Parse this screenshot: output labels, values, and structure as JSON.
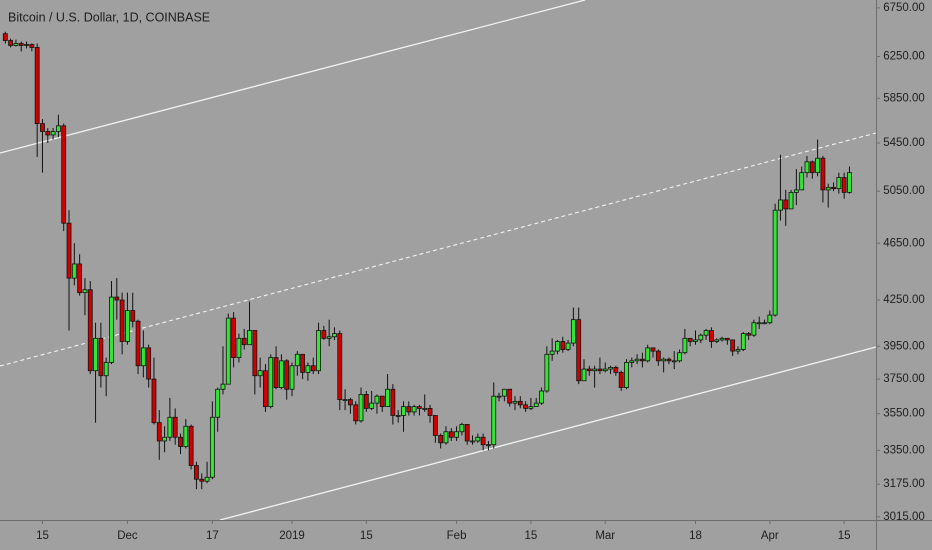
{
  "chart_data": {
    "type": "candlestick",
    "title": "Bitcoin / U.S. Dollar, 1D, COINBASE",
    "log_scale": true,
    "grid": false,
    "up_color": "#33e633",
    "down_color": "#d10000",
    "wick_color": "#111111",
    "ylim": [
      3000,
      6835
    ],
    "yticks": [
      {
        "value": 6750,
        "label": "6750.00"
      },
      {
        "value": 6250,
        "label": "6250.00"
      },
      {
        "value": 5850,
        "label": "5850.00"
      },
      {
        "value": 5450,
        "label": "5450.00"
      },
      {
        "value": 5050,
        "label": "5050.00"
      },
      {
        "value": 4650,
        "label": "4650.00"
      },
      {
        "value": 4250,
        "label": "4250.00"
      },
      {
        "value": 3950,
        "label": "3950.00"
      },
      {
        "value": 3750,
        "label": "3750.00"
      },
      {
        "value": 3550,
        "label": "3550.00"
      },
      {
        "value": 3350,
        "label": "3350.00"
      },
      {
        "value": 3175,
        "label": "3175.00"
      },
      {
        "value": 3015,
        "label": "3015.00"
      }
    ],
    "xlim": [
      "2018-11-07",
      "2019-04-21"
    ],
    "xticks": [
      {
        "value": "2018-11-15",
        "label": "15"
      },
      {
        "value": "2018-12-01",
        "label": "Dec"
      },
      {
        "value": "2018-12-17",
        "label": "17"
      },
      {
        "value": "2019-01-01",
        "label": "2019"
      },
      {
        "value": "2019-01-15",
        "label": "15"
      },
      {
        "value": "2019-02-01",
        "label": "Feb"
      },
      {
        "value": "2019-02-15",
        "label": "15"
      },
      {
        "value": "2019-03-01",
        "label": "Mar"
      },
      {
        "value": "2019-03-18",
        "label": "18"
      },
      {
        "value": "2019-04-01",
        "label": "Apr"
      },
      {
        "value": "2019-04-15",
        "label": "15"
      }
    ],
    "x": [
      "2018-11-08",
      "2018-11-09",
      "2018-11-10",
      "2018-11-11",
      "2018-11-12",
      "2018-11-13",
      "2018-11-14",
      "2018-11-15",
      "2018-11-16",
      "2018-11-17",
      "2018-11-18",
      "2018-11-19",
      "2018-11-20",
      "2018-11-21",
      "2018-11-22",
      "2018-11-23",
      "2018-11-24",
      "2018-11-25",
      "2018-11-26",
      "2018-11-27",
      "2018-11-28",
      "2018-11-29",
      "2018-11-30",
      "2018-12-01",
      "2018-12-02",
      "2018-12-03",
      "2018-12-04",
      "2018-12-05",
      "2018-12-06",
      "2018-12-07",
      "2018-12-08",
      "2018-12-09",
      "2018-12-10",
      "2018-12-11",
      "2018-12-12",
      "2018-12-13",
      "2018-12-14",
      "2018-12-15",
      "2018-12-16",
      "2018-12-17",
      "2018-12-18",
      "2018-12-19",
      "2018-12-20",
      "2018-12-21",
      "2018-12-22",
      "2018-12-23",
      "2018-12-24",
      "2018-12-25",
      "2018-12-26",
      "2018-12-27",
      "2018-12-28",
      "2018-12-29",
      "2018-12-30",
      "2018-12-31",
      "2019-01-01",
      "2019-01-02",
      "2019-01-03",
      "2019-01-04",
      "2019-01-05",
      "2019-01-06",
      "2019-01-07",
      "2019-01-08",
      "2019-01-09",
      "2019-01-10",
      "2019-01-11",
      "2019-01-12",
      "2019-01-13",
      "2019-01-14",
      "2019-01-15",
      "2019-01-16",
      "2019-01-17",
      "2019-01-18",
      "2019-01-19",
      "2019-01-20",
      "2019-01-21",
      "2019-01-22",
      "2019-01-23",
      "2019-01-24",
      "2019-01-25",
      "2019-01-26",
      "2019-01-27",
      "2019-01-28",
      "2019-01-29",
      "2019-01-30",
      "2019-01-31",
      "2019-02-01",
      "2019-02-02",
      "2019-02-03",
      "2019-02-04",
      "2019-02-05",
      "2019-02-06",
      "2019-02-07",
      "2019-02-08",
      "2019-02-09",
      "2019-02-10",
      "2019-02-11",
      "2019-02-12",
      "2019-02-13",
      "2019-02-14",
      "2019-02-15",
      "2019-02-16",
      "2019-02-17",
      "2019-02-18",
      "2019-02-19",
      "2019-02-20",
      "2019-02-21",
      "2019-02-22",
      "2019-02-23",
      "2019-02-24",
      "2019-02-25",
      "2019-02-26",
      "2019-02-27",
      "2019-02-28",
      "2019-03-01",
      "2019-03-02",
      "2019-03-03",
      "2019-03-04",
      "2019-03-05",
      "2019-03-06",
      "2019-03-07",
      "2019-03-08",
      "2019-03-09",
      "2019-03-10",
      "2019-03-11",
      "2019-03-12",
      "2019-03-13",
      "2019-03-14",
      "2019-03-15",
      "2019-03-16",
      "2019-03-17",
      "2019-03-18",
      "2019-03-19",
      "2019-03-20",
      "2019-03-21",
      "2019-03-22",
      "2019-03-23",
      "2019-03-24",
      "2019-03-25",
      "2019-03-26",
      "2019-03-27",
      "2019-03-28",
      "2019-03-29",
      "2019-03-30",
      "2019-03-31",
      "2019-04-01",
      "2019-04-02",
      "2019-04-03",
      "2019-04-04",
      "2019-04-05",
      "2019-04-06",
      "2019-04-07",
      "2019-04-08",
      "2019-04-09",
      "2019-04-10",
      "2019-04-11",
      "2019-04-12",
      "2019-04-13",
      "2019-04-14",
      "2019-04-15",
      "2019-04-16"
    ],
    "open": [
      6480,
      6410,
      6360,
      6380,
      6360,
      6370,
      6340,
      5620,
      5550,
      5520,
      5550,
      5600,
      4800,
      4400,
      4500,
      4300,
      4320,
      3800,
      4000,
      3770,
      3850,
      4270,
      4250,
      3980,
      4180,
      4110,
      3830,
      3940,
      3750,
      3500,
      3400,
      3420,
      3530,
      3420,
      3370,
      3480,
      3270,
      3200,
      3190,
      3210,
      3530,
      3690,
      3720,
      4130,
      3880,
      4000,
      3960,
      4050,
      3770,
      3800,
      3590,
      3880,
      3700,
      3860,
      3690,
      3830,
      3900,
      3790,
      3830,
      3800,
      4050,
      4000,
      4010,
      4030,
      3630,
      3630,
      3600,
      3510,
      3660,
      3580,
      3610,
      3650,
      3590,
      3690,
      3540,
      3540,
      3590,
      3560,
      3590,
      3580,
      3580,
      3540,
      3430,
      3390,
      3450,
      3420,
      3450,
      3490,
      3400,
      3400,
      3420,
      3380,
      3380,
      3650,
      3650,
      3690,
      3610,
      3620,
      3600,
      3580,
      3590,
      3610,
      3680,
      3900,
      3920,
      3980,
      3930,
      3970,
      4120,
      3740,
      3810,
      3800,
      3810,
      3800,
      3810,
      3820,
      3790,
      3700,
      3850,
      3860,
      3870,
      3860,
      3940,
      3920,
      3860,
      3870,
      3860,
      3860,
      3910,
      4000,
      3980,
      3990,
      4020,
      4050,
      3980,
      3990,
      4000,
      3990,
      3920,
      3930,
      4030,
      4020,
      4100,
      4100,
      4100,
      4150,
      4900,
      4980,
      4910,
      5040,
      5060,
      5200,
      5290,
      5200,
      5320,
      5060,
      5080,
      5070,
      5160,
      5040
    ],
    "high": [
      6500,
      6430,
      6420,
      6400,
      6400,
      6380,
      6380,
      5660,
      5580,
      5580,
      5700,
      5620,
      4900,
      4650,
      4570,
      4400,
      4380,
      4100,
      4100,
      3880,
      4380,
      4400,
      4300,
      4300,
      4300,
      4120,
      4050,
      3960,
      3880,
      3570,
      3480,
      3640,
      3580,
      3440,
      3520,
      3490,
      3290,
      3230,
      3290,
      3620,
      3700,
      3950,
      4160,
      4170,
      4030,
      4060,
      4240,
      4050,
      3880,
      3840,
      3900,
      3950,
      3900,
      3870,
      3850,
      3920,
      3900,
      3850,
      3880,
      4100,
      4080,
      4120,
      4070,
      4050,
      3690,
      3640,
      3620,
      3700,
      3680,
      3680,
      3660,
      3650,
      3780,
      3720,
      3570,
      3620,
      3620,
      3600,
      3600,
      3660,
      3600,
      3540,
      3440,
      3480,
      3470,
      3480,
      3500,
      3490,
      3430,
      3440,
      3440,
      3400,
      3730,
      3670,
      3690,
      3690,
      3650,
      3650,
      3620,
      3640,
      3640,
      3700,
      3950,
      4000,
      3990,
      4010,
      3990,
      4200,
      4200,
      3870,
      3830,
      3830,
      3880,
      3850,
      3830,
      3830,
      3800,
      3870,
      3880,
      3900,
      3910,
      3960,
      3940,
      3930,
      3880,
      3880,
      3920,
      3930,
      4060,
      4000,
      4050,
      4030,
      4060,
      4070,
      4000,
      4010,
      4000,
      3990,
      3950,
      4040,
      4040,
      4120,
      4140,
      4120,
      4180,
      4950,
      5350,
      5060,
      5060,
      5230,
      5250,
      5340,
      5300,
      5480,
      5340,
      5110,
      5120,
      5200,
      5200,
      5250
    ],
    "low": [
      6380,
      6340,
      6350,
      6300,
      6330,
      6300,
      5330,
      5200,
      5450,
      5480,
      5500,
      4740,
      4050,
      4350,
      4280,
      4150,
      3780,
      3500,
      3700,
      3650,
      3840,
      4120,
      3900,
      3960,
      4070,
      3780,
      3760,
      3700,
      3490,
      3300,
      3340,
      3400,
      3380,
      3330,
      3360,
      3250,
      3150,
      3150,
      3180,
      3200,
      3450,
      3660,
      3720,
      3820,
      3850,
      3930,
      3960,
      3660,
      3700,
      3560,
      3580,
      3690,
      3690,
      3630,
      3650,
      3770,
      3750,
      3740,
      3780,
      3780,
      3990,
      3950,
      3990,
      3570,
      3570,
      3550,
      3490,
      3500,
      3560,
      3570,
      3550,
      3560,
      3590,
      3490,
      3500,
      3450,
      3540,
      3540,
      3540,
      3560,
      3500,
      3390,
      3360,
      3380,
      3400,
      3400,
      3430,
      3380,
      3380,
      3390,
      3350,
      3350,
      3360,
      3620,
      3620,
      3590,
      3570,
      3580,
      3560,
      3570,
      3590,
      3600,
      3670,
      3860,
      3900,
      3910,
      3920,
      3950,
      3720,
      3740,
      3770,
      3700,
      3780,
      3790,
      3780,
      3770,
      3680,
      3690,
      3820,
      3840,
      3820,
      3850,
      3880,
      3830,
      3790,
      3840,
      3810,
      3850,
      3900,
      3950,
      3960,
      3970,
      3990,
      3940,
      3970,
      3980,
      3960,
      3890,
      3900,
      3920,
      3990,
      4010,
      4060,
      4090,
      4090,
      4140,
      4820,
      4780,
      4910,
      4940,
      5060,
      5160,
      5150,
      5170,
      4960,
      4920,
      5050,
      5030,
      4990,
      5030
    ],
    "close": [
      6410,
      6360,
      6380,
      6360,
      6370,
      6340,
      5620,
      5550,
      5520,
      5550,
      5600,
      4800,
      4400,
      4500,
      4300,
      4320,
      3800,
      4000,
      3770,
      3850,
      4270,
      4250,
      3980,
      4180,
      4110,
      3830,
      3940,
      3750,
      3500,
      3400,
      3420,
      3530,
      3420,
      3370,
      3480,
      3270,
      3200,
      3190,
      3210,
      3530,
      3690,
      3720,
      4130,
      3880,
      4000,
      3960,
      4050,
      3770,
      3800,
      3590,
      3880,
      3700,
      3860,
      3690,
      3830,
      3900,
      3790,
      3830,
      3800,
      4050,
      4000,
      4010,
      4030,
      3630,
      3630,
      3600,
      3510,
      3660,
      3580,
      3610,
      3650,
      3590,
      3690,
      3540,
      3540,
      3590,
      3560,
      3590,
      3580,
      3580,
      3540,
      3430,
      3390,
      3450,
      3420,
      3450,
      3490,
      3400,
      3400,
      3420,
      3380,
      3380,
      3650,
      3650,
      3690,
      3610,
      3620,
      3600,
      3580,
      3590,
      3610,
      3680,
      3900,
      3920,
      3980,
      3930,
      3970,
      4120,
      3740,
      3810,
      3800,
      3810,
      3800,
      3810,
      3820,
      3790,
      3700,
      3850,
      3860,
      3870,
      3860,
      3940,
      3920,
      3860,
      3870,
      3860,
      3860,
      3910,
      4000,
      3980,
      3990,
      4020,
      4050,
      3980,
      3990,
      4000,
      3990,
      3920,
      3930,
      4030,
      4020,
      4100,
      4100,
      4100,
      4150,
      4900,
      4980,
      4910,
      5040,
      5060,
      5200,
      5290,
      5200,
      5320,
      5060,
      5080,
      5070,
      5160,
      5040,
      5200
    ]
  }
}
